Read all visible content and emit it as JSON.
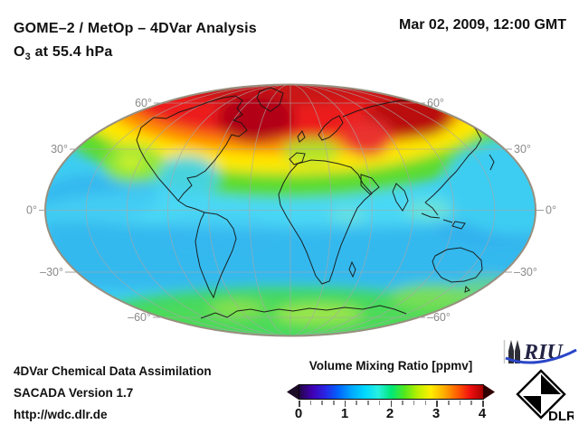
{
  "header": {
    "line1": "GOME–2 / MetOp – 4DVar Analysis",
    "species": "O",
    "species_sub": "3",
    "level": " at 55.4 hPa",
    "datetime": "Mar 02, 2009, 12:00 GMT"
  },
  "map": {
    "lat_labels": [
      "60°",
      "30°",
      "0°",
      "–30°",
      "–60°"
    ]
  },
  "legend": {
    "title": "Volume Mixing Ratio [ppmv]",
    "ticks": [
      "0",
      "1",
      "2",
      "3",
      "4"
    ],
    "gradient": [
      "#24064a",
      "#4100b4",
      "#2727e6",
      "#0066ff",
      "#00aaff",
      "#00d8ff",
      "#28f0e0",
      "#00e878",
      "#52e81e",
      "#b8f000",
      "#ffee00",
      "#ffb000",
      "#ff6000",
      "#f01010",
      "#a80000"
    ],
    "arrow_left_color": "#1b0b26",
    "arrow_right_color": "#300000"
  },
  "footer": {
    "lines": [
      "4DVar Chemical Data Assimilation",
      "SACADA Version 1.7",
      "http://wdc.dlr.de"
    ]
  },
  "logos": {
    "riu": "RIU",
    "riu_blue": "#2a46c8",
    "dlr": "DLR"
  },
  "chart_data": {
    "type": "heatmap",
    "title": "GOME–2 / MetOp – 4DVar Analysis",
    "subtitle": "O3 at 55.4 hPa",
    "timestamp": "Mar 02, 2009, 12:00 GMT",
    "projection": "mollweide-global",
    "colorbar": {
      "label": "Volume Mixing Ratio [ppmv]",
      "min": 0,
      "max": 4,
      "major_ticks": [
        0,
        1,
        2,
        3,
        4
      ],
      "minor_tick_step": 0.25
    },
    "graticule": {
      "latitude_lines_deg": [
        60,
        30,
        0,
        -30,
        -60
      ],
      "longitude_spacing_deg": 30,
      "grid_on": true
    },
    "approx_field_ppmv": [
      {
        "region": "north polar cap 70-90N",
        "value": 3.6
      },
      {
        "region": "NE Canada / Greenland maximum core",
        "value": 4.0
      },
      {
        "region": "N Europe / Siberia maximum core",
        "value": 4.0
      },
      {
        "region": "45-60N transition ring (yellow-orange)",
        "value": 2.8
      },
      {
        "region": "NE Pacific patch near 40N",
        "value": 2.3
      },
      {
        "region": "Europe / Mediterranean band",
        "value": 2.4
      },
      {
        "region": "East Asia 30-40N cyan intrusion",
        "value": 1.4
      },
      {
        "region": "tropics 30S-30N",
        "value": 1.3
      },
      {
        "region": "southern midlatitudes 30-50S",
        "value": 1.2
      },
      {
        "region": "southern high latitudes 55-90S (green cap)",
        "value": 2.0
      },
      {
        "region": "yellow-green patches near 60S",
        "value": 2.4
      }
    ]
  }
}
